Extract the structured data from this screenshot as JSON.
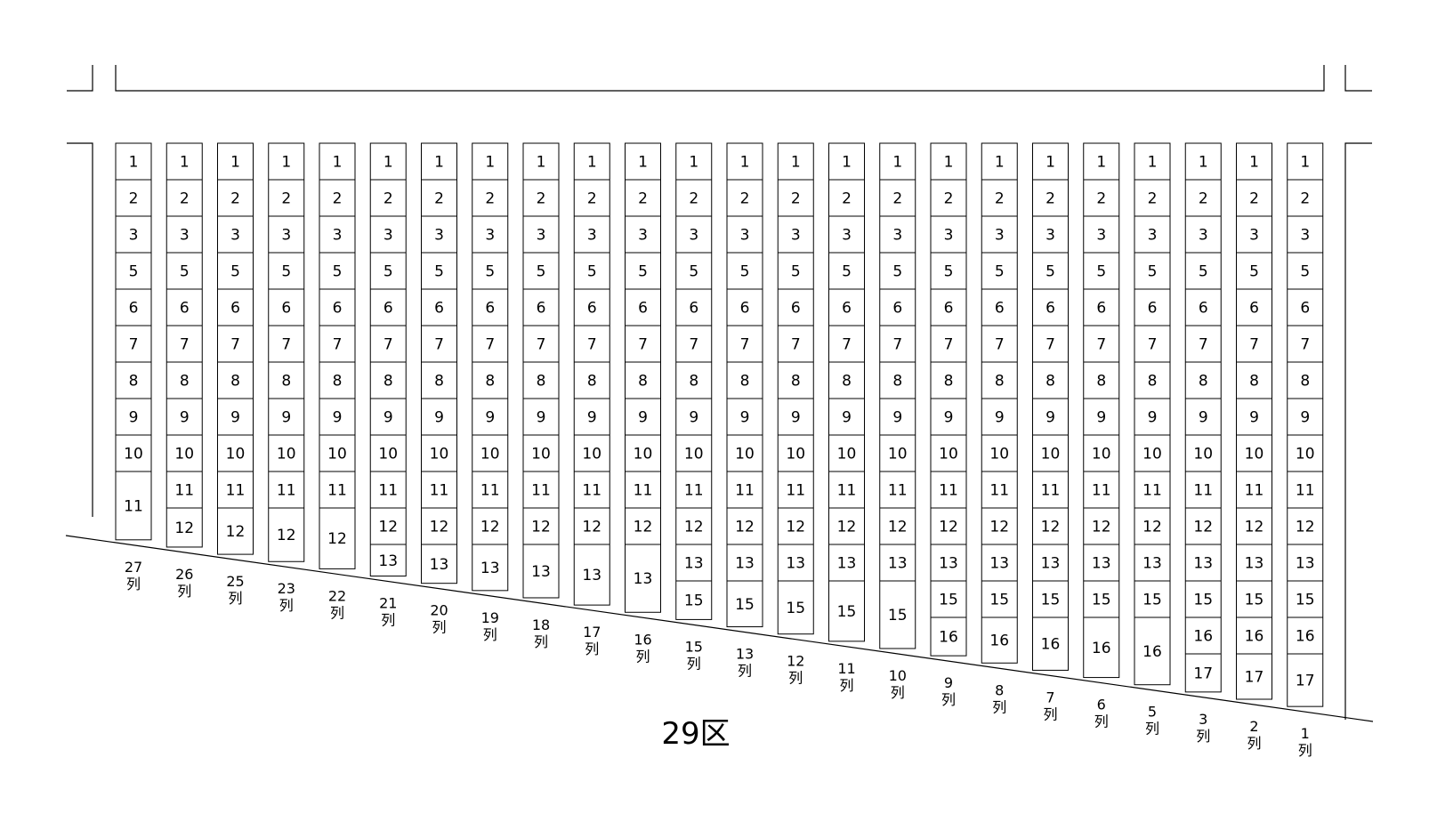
{
  "section_label": "29区",
  "column_suffix": "列",
  "columns": [
    {
      "label": "27",
      "cells": [
        "1",
        "2",
        "3",
        "5",
        "6",
        "7",
        "8",
        "9",
        "10",
        "11"
      ]
    },
    {
      "label": "26",
      "cells": [
        "1",
        "2",
        "3",
        "5",
        "6",
        "7",
        "8",
        "9",
        "10",
        "11",
        "12"
      ]
    },
    {
      "label": "25",
      "cells": [
        "1",
        "2",
        "3",
        "5",
        "6",
        "7",
        "8",
        "9",
        "10",
        "11",
        "12"
      ]
    },
    {
      "label": "23",
      "cells": [
        "1",
        "2",
        "3",
        "5",
        "6",
        "7",
        "8",
        "9",
        "10",
        "11",
        "12"
      ]
    },
    {
      "label": "22",
      "cells": [
        "1",
        "2",
        "3",
        "5",
        "6",
        "7",
        "8",
        "9",
        "10",
        "11",
        "12"
      ]
    },
    {
      "label": "21",
      "cells": [
        "1",
        "2",
        "3",
        "5",
        "6",
        "7",
        "8",
        "9",
        "10",
        "11",
        "12",
        "13"
      ]
    },
    {
      "label": "20",
      "cells": [
        "1",
        "2",
        "3",
        "5",
        "6",
        "7",
        "8",
        "9",
        "10",
        "11",
        "12",
        "13"
      ]
    },
    {
      "label": "19",
      "cells": [
        "1",
        "2",
        "3",
        "5",
        "6",
        "7",
        "8",
        "9",
        "10",
        "11",
        "12",
        "13"
      ]
    },
    {
      "label": "18",
      "cells": [
        "1",
        "2",
        "3",
        "5",
        "6",
        "7",
        "8",
        "9",
        "10",
        "11",
        "12",
        "13"
      ]
    },
    {
      "label": "17",
      "cells": [
        "1",
        "2",
        "3",
        "5",
        "6",
        "7",
        "8",
        "9",
        "10",
        "11",
        "12",
        "13"
      ]
    },
    {
      "label": "16",
      "cells": [
        "1",
        "2",
        "3",
        "5",
        "6",
        "7",
        "8",
        "9",
        "10",
        "11",
        "12",
        "13"
      ]
    },
    {
      "label": "15",
      "cells": [
        "1",
        "2",
        "3",
        "5",
        "6",
        "7",
        "8",
        "9",
        "10",
        "11",
        "12",
        "13",
        "15"
      ]
    },
    {
      "label": "13",
      "cells": [
        "1",
        "2",
        "3",
        "5",
        "6",
        "7",
        "8",
        "9",
        "10",
        "11",
        "12",
        "13",
        "15"
      ]
    },
    {
      "label": "12",
      "cells": [
        "1",
        "2",
        "3",
        "5",
        "6",
        "7",
        "8",
        "9",
        "10",
        "11",
        "12",
        "13",
        "15"
      ]
    },
    {
      "label": "11",
      "cells": [
        "1",
        "2",
        "3",
        "5",
        "6",
        "7",
        "8",
        "9",
        "10",
        "11",
        "12",
        "13",
        "15"
      ]
    },
    {
      "label": "10",
      "cells": [
        "1",
        "2",
        "3",
        "5",
        "6",
        "7",
        "8",
        "9",
        "10",
        "11",
        "12",
        "13",
        "15"
      ]
    },
    {
      "label": "9",
      "cells": [
        "1",
        "2",
        "3",
        "5",
        "6",
        "7",
        "8",
        "9",
        "10",
        "11",
        "12",
        "13",
        "15",
        "16"
      ]
    },
    {
      "label": "8",
      "cells": [
        "1",
        "2",
        "3",
        "5",
        "6",
        "7",
        "8",
        "9",
        "10",
        "11",
        "12",
        "13",
        "15",
        "16"
      ]
    },
    {
      "label": "7",
      "cells": [
        "1",
        "2",
        "3",
        "5",
        "6",
        "7",
        "8",
        "9",
        "10",
        "11",
        "12",
        "13",
        "15",
        "16"
      ]
    },
    {
      "label": "6",
      "cells": [
        "1",
        "2",
        "3",
        "5",
        "6",
        "7",
        "8",
        "9",
        "10",
        "11",
        "12",
        "13",
        "15",
        "16"
      ]
    },
    {
      "label": "5",
      "cells": [
        "1",
        "2",
        "3",
        "5",
        "6",
        "7",
        "8",
        "9",
        "10",
        "11",
        "12",
        "13",
        "15",
        "16"
      ]
    },
    {
      "label": "3",
      "cells": [
        "1",
        "2",
        "3",
        "5",
        "6",
        "7",
        "8",
        "9",
        "10",
        "11",
        "12",
        "13",
        "15",
        "16",
        "17"
      ]
    },
    {
      "label": "2",
      "cells": [
        "1",
        "2",
        "3",
        "5",
        "6",
        "7",
        "8",
        "9",
        "10",
        "11",
        "12",
        "13",
        "15",
        "16",
        "17"
      ]
    },
    {
      "label": "1",
      "cells": [
        "1",
        "2",
        "3",
        "5",
        "6",
        "7",
        "8",
        "9",
        "10",
        "11",
        "12",
        "13",
        "15",
        "16",
        "17"
      ]
    }
  ]
}
